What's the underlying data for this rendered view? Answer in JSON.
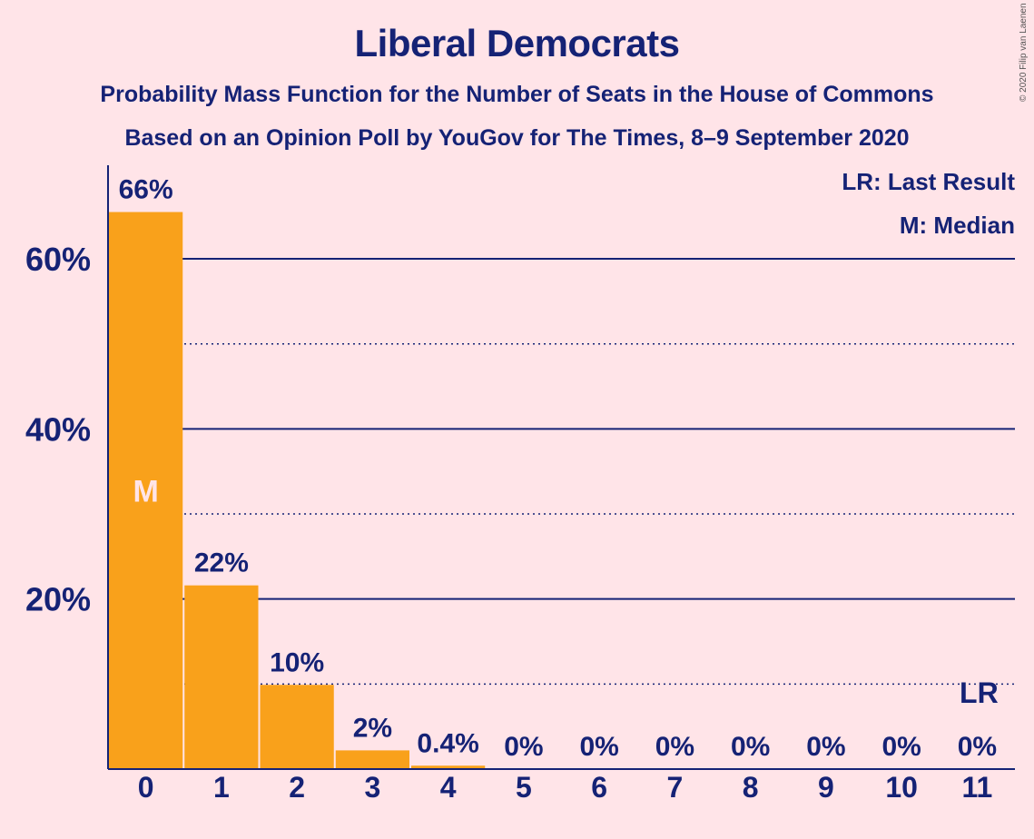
{
  "chart_data": {
    "type": "bar",
    "title": "Liberal Democrats",
    "subtitle1": "Probability Mass Function for the Number of Seats in the House of Commons",
    "subtitle2": "Based on an Opinion Poll by YouGov for The Times, 8–9 September 2020",
    "categories": [
      "0",
      "1",
      "2",
      "3",
      "4",
      "5",
      "6",
      "7",
      "8",
      "9",
      "10",
      "11"
    ],
    "values": [
      65.5,
      21.6,
      9.9,
      2.2,
      0.4,
      0,
      0,
      0,
      0,
      0,
      0,
      0
    ],
    "value_labels": [
      "66%",
      "22%",
      "10%",
      "2%",
      "0.4%",
      "0%",
      "0%",
      "0%",
      "0%",
      "0%",
      "0%",
      "0%"
    ],
    "ylim": [
      0,
      71
    ],
    "y_ticks": [
      20,
      40,
      60
    ],
    "y_tick_labels": [
      "20%",
      "40%",
      "60%"
    ],
    "y_minor_ticks": [
      10,
      30,
      50
    ],
    "median_category": "0",
    "median_marker": "M",
    "last_result_category": "11",
    "last_result_marker": "LR",
    "legend": [
      "LR: Last Result",
      "M: Median"
    ],
    "copyright": "© 2020 Filip van Laenen",
    "colors": {
      "bar": "#F9A11B",
      "text": "#152275",
      "background": "#FFE4E8",
      "median_text": "#FFE4E8"
    }
  }
}
